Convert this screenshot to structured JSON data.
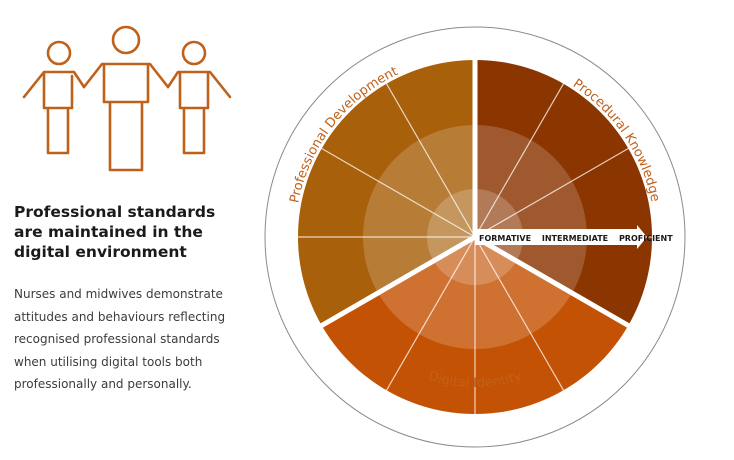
{
  "icons": {
    "people": "three-people-holding-hands-icon"
  },
  "heading": "Professional standards are maintained in the digital environment",
  "description": "Nurses and midwives demonstrate attitudes and behaviours reflecting recognised professional standards when utilising digital tools both professionally and personally.",
  "wheel": {
    "segments": [
      {
        "label": "Procedural Knowledge",
        "color": "#8b3500"
      },
      {
        "label": "Digital Identity",
        "color": "#c45204"
      },
      {
        "label": "Professional Development",
        "color": "#a8600a"
      }
    ],
    "levels": [
      "FORMATIVE",
      "INTERMEDIATE",
      "PROFICIENT"
    ]
  },
  "colors": {
    "accent": "#c0611b",
    "ring": "#8a8a8a",
    "heading": "#1a1a1a",
    "body": "#3c3c3c"
  }
}
